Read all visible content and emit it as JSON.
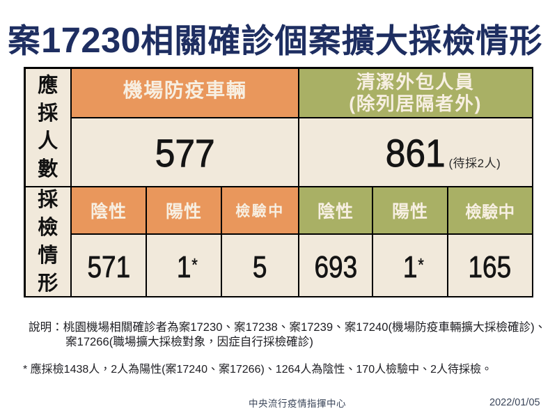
{
  "title": "案17230相關確診個案擴大採檢情形",
  "table": {
    "left_labels": {
      "top": "應採人數",
      "bottom": "採檢情形"
    },
    "groups": [
      {
        "header_lines": [
          "機場防疫車輛"
        ],
        "total": "577",
        "total_note": "",
        "columns": [
          {
            "label": "陰性",
            "value": "571",
            "sup": ""
          },
          {
            "label": "陽性",
            "value": "1",
            "sup": "*"
          },
          {
            "label": "檢驗中",
            "value": "5",
            "sup": ""
          }
        ]
      },
      {
        "header_lines": [
          "清潔外包人員",
          "(除列居隔者外)"
        ],
        "total": "861",
        "total_note": "(待採2人)",
        "columns": [
          {
            "label": "陰性",
            "value": "693",
            "sup": ""
          },
          {
            "label": "陽性",
            "value": "1",
            "sup": "*"
          },
          {
            "label": "檢驗中",
            "value": "165",
            "sup": ""
          }
        ]
      }
    ]
  },
  "notes": {
    "line1": "說明：桃園機場相關確診者為案17230、案17238、案17239、案17240(機場防疫車輛擴大採檢確診)、",
    "line2": "案17266(職場擴大採檢對象，因症自行採檢確診)",
    "footnote": "* 應採檢1438人，2人為陽性(案17240、案17266)、1264人為陰性、170人檢驗中、2人待採檢。"
  },
  "footer": {
    "org": "中央流行疫情指揮中心",
    "date": "2022/01/05"
  },
  "colors": {
    "title_navy": "#1e2e61",
    "header_orange": "#e9975c",
    "header_olive": "#a9b065",
    "cell_cream": "#f1e9db",
    "border_black": "#000000"
  }
}
